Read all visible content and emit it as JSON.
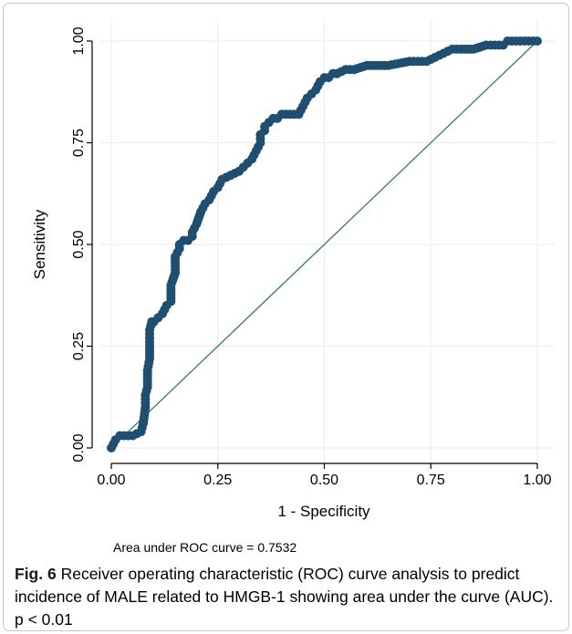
{
  "figure": {
    "auc_note": "Area under ROC curve = 0.7532",
    "caption_label": "Fig. 6",
    "caption_text": "Receiver operating characteristic (ROC) curve analysis to predict incidence of MALE related to HMGB-1 showing area under the curve (AUC). p < 0.01"
  },
  "chart_data": {
    "type": "line",
    "xlabel": "1 - Specificity",
    "ylabel": "Sensitivity",
    "xlim": [
      0,
      1
    ],
    "ylim": [
      0,
      1
    ],
    "xticks": [
      "0.00",
      "0.25",
      "0.50",
      "0.75",
      "1.00"
    ],
    "yticks": [
      "0.00",
      "0.25",
      "0.50",
      "0.75",
      "1.00"
    ],
    "grid": true,
    "legend": "none",
    "auc": 0.7532,
    "colors": {
      "roc": "#1f4e73",
      "reference": "#2e7d6b",
      "grid": "#e6eef2"
    },
    "series": [
      {
        "type": "roc",
        "x": [
          0.0,
          0.01,
          0.02,
          0.03,
          0.05,
          0.07,
          0.075,
          0.08,
          0.08,
          0.085,
          0.085,
          0.09,
          0.09,
          0.09,
          0.095,
          0.095,
          0.1,
          0.11,
          0.12,
          0.13,
          0.14,
          0.14,
          0.15,
          0.15,
          0.16,
          0.16,
          0.17,
          0.18,
          0.19,
          0.19,
          0.2,
          0.21,
          0.22,
          0.23,
          0.24,
          0.25,
          0.26,
          0.28,
          0.3,
          0.31,
          0.32,
          0.33,
          0.34,
          0.35,
          0.35,
          0.36,
          0.36,
          0.37,
          0.38,
          0.39,
          0.4,
          0.42,
          0.44,
          0.45,
          0.46,
          0.47,
          0.48,
          0.49,
          0.5,
          0.51,
          0.52,
          0.53,
          0.55,
          0.57,
          0.6,
          0.65,
          0.7,
          0.72,
          0.74,
          0.76,
          0.78,
          0.8,
          0.82,
          0.85,
          0.88,
          0.9,
          0.92,
          0.93,
          0.95,
          0.97,
          0.99,
          1.0
        ],
        "y": [
          0.0,
          0.02,
          0.03,
          0.03,
          0.03,
          0.04,
          0.06,
          0.1,
          0.13,
          0.15,
          0.19,
          0.22,
          0.26,
          0.29,
          0.31,
          0.31,
          0.31,
          0.32,
          0.33,
          0.35,
          0.36,
          0.4,
          0.43,
          0.47,
          0.49,
          0.5,
          0.51,
          0.51,
          0.52,
          0.53,
          0.55,
          0.58,
          0.6,
          0.61,
          0.63,
          0.64,
          0.66,
          0.67,
          0.68,
          0.69,
          0.7,
          0.71,
          0.73,
          0.75,
          0.77,
          0.78,
          0.79,
          0.8,
          0.81,
          0.81,
          0.82,
          0.82,
          0.82,
          0.84,
          0.86,
          0.87,
          0.88,
          0.9,
          0.91,
          0.91,
          0.92,
          0.92,
          0.93,
          0.93,
          0.94,
          0.94,
          0.95,
          0.95,
          0.95,
          0.96,
          0.97,
          0.98,
          0.98,
          0.98,
          0.99,
          0.99,
          0.99,
          1.0,
          1.0,
          1.0,
          1.0,
          1.0
        ]
      },
      {
        "type": "reference",
        "x": [
          0,
          1
        ],
        "y": [
          0,
          1
        ]
      }
    ]
  }
}
